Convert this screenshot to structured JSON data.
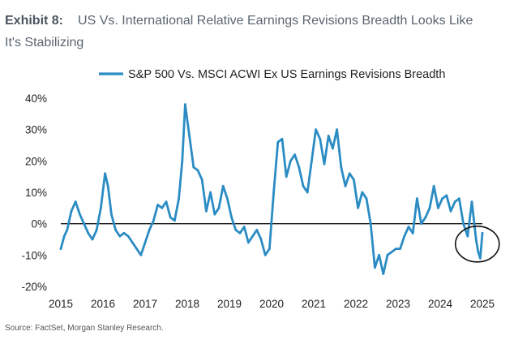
{
  "exhibit": {
    "label": "Exhibit 8:",
    "title": "US Vs. International Relative Earnings Revisions Breadth Looks Like It's Stabilizing"
  },
  "source": "Source: FactSet, Morgan Stanley Research.",
  "colors": {
    "series": "#2b8cc4",
    "zero_line": "#111111",
    "circle": "#111111"
  },
  "chart_data": {
    "type": "line",
    "title": "",
    "xlabel": "",
    "ylabel": "",
    "legend_position": "top-center",
    "grid": false,
    "xlim": [
      2015.0,
      2025.0
    ],
    "ylim": [
      -20,
      40
    ],
    "x_ticks": [
      "2015",
      "2016",
      "2017",
      "2018",
      "2019",
      "2020",
      "2021",
      "2022",
      "2023",
      "2024",
      "2025"
    ],
    "y_ticks": [
      "40%",
      "30%",
      "20%",
      "10%",
      "0%",
      "-10%",
      "-20%"
    ],
    "y_tick_values": [
      40,
      30,
      20,
      10,
      0,
      -10,
      -20
    ],
    "annotation": "circle highlighting the recent low in late 2024 / early 2025",
    "series": [
      {
        "name": "S&P 500 Vs. MSCI ACWI Ex US Earnings Revisions Breadth",
        "x": [
          2015.0,
          2015.08,
          2015.15,
          2015.25,
          2015.35,
          2015.45,
          2015.55,
          2015.65,
          2015.75,
          2015.85,
          2015.95,
          2016.05,
          2016.12,
          2016.2,
          2016.3,
          2016.4,
          2016.5,
          2016.6,
          2016.7,
          2016.8,
          2016.9,
          2017.0,
          2017.1,
          2017.2,
          2017.3,
          2017.4,
          2017.5,
          2017.6,
          2017.7,
          2017.8,
          2017.88,
          2017.95,
          2018.05,
          2018.15,
          2018.25,
          2018.35,
          2018.45,
          2018.55,
          2018.65,
          2018.75,
          2018.85,
          2018.95,
          2019.05,
          2019.15,
          2019.25,
          2019.35,
          2019.45,
          2019.55,
          2019.65,
          2019.75,
          2019.85,
          2019.95,
          2020.05,
          2020.15,
          2020.25,
          2020.35,
          2020.45,
          2020.55,
          2020.65,
          2020.75,
          2020.85,
          2020.95,
          2021.05,
          2021.15,
          2021.25,
          2021.35,
          2021.45,
          2021.55,
          2021.65,
          2021.75,
          2021.85,
          2021.95,
          2022.05,
          2022.15,
          2022.25,
          2022.35,
          2022.45,
          2022.55,
          2022.65,
          2022.75,
          2022.85,
          2022.95,
          2023.05,
          2023.15,
          2023.25,
          2023.35,
          2023.45,
          2023.55,
          2023.65,
          2023.75,
          2023.85,
          2023.95,
          2024.05,
          2024.15,
          2024.25,
          2024.35,
          2024.45,
          2024.55,
          2024.65,
          2024.75,
          2024.85,
          2024.9,
          2024.95,
          2025.0
        ],
        "y": [
          -8,
          -4,
          -2,
          4,
          7,
          3,
          0,
          -3,
          -5,
          -2,
          5,
          16,
          12,
          3,
          -2,
          -4,
          -3,
          -4,
          -6,
          -8,
          -10,
          -6,
          -2,
          1,
          6,
          5,
          7,
          2,
          1,
          8,
          20,
          38,
          28,
          18,
          17,
          14,
          4,
          10,
          3,
          5,
          12,
          8,
          2,
          -2,
          -3,
          -1,
          -6,
          -4,
          -2,
          -5,
          -10,
          -8,
          10,
          26,
          27,
          15,
          20,
          22,
          18,
          12,
          10,
          20,
          30,
          27,
          19,
          28,
          24,
          30,
          18,
          12,
          16,
          14,
          5,
          10,
          8,
          0,
          -14,
          -10,
          -16,
          -10,
          -9,
          -8,
          -8,
          -4,
          -1,
          -3,
          8,
          0,
          2,
          5,
          12,
          5,
          8,
          9,
          4,
          7,
          8,
          0,
          -4,
          7,
          -5,
          -9,
          -11,
          -3
        ]
      }
    ]
  }
}
